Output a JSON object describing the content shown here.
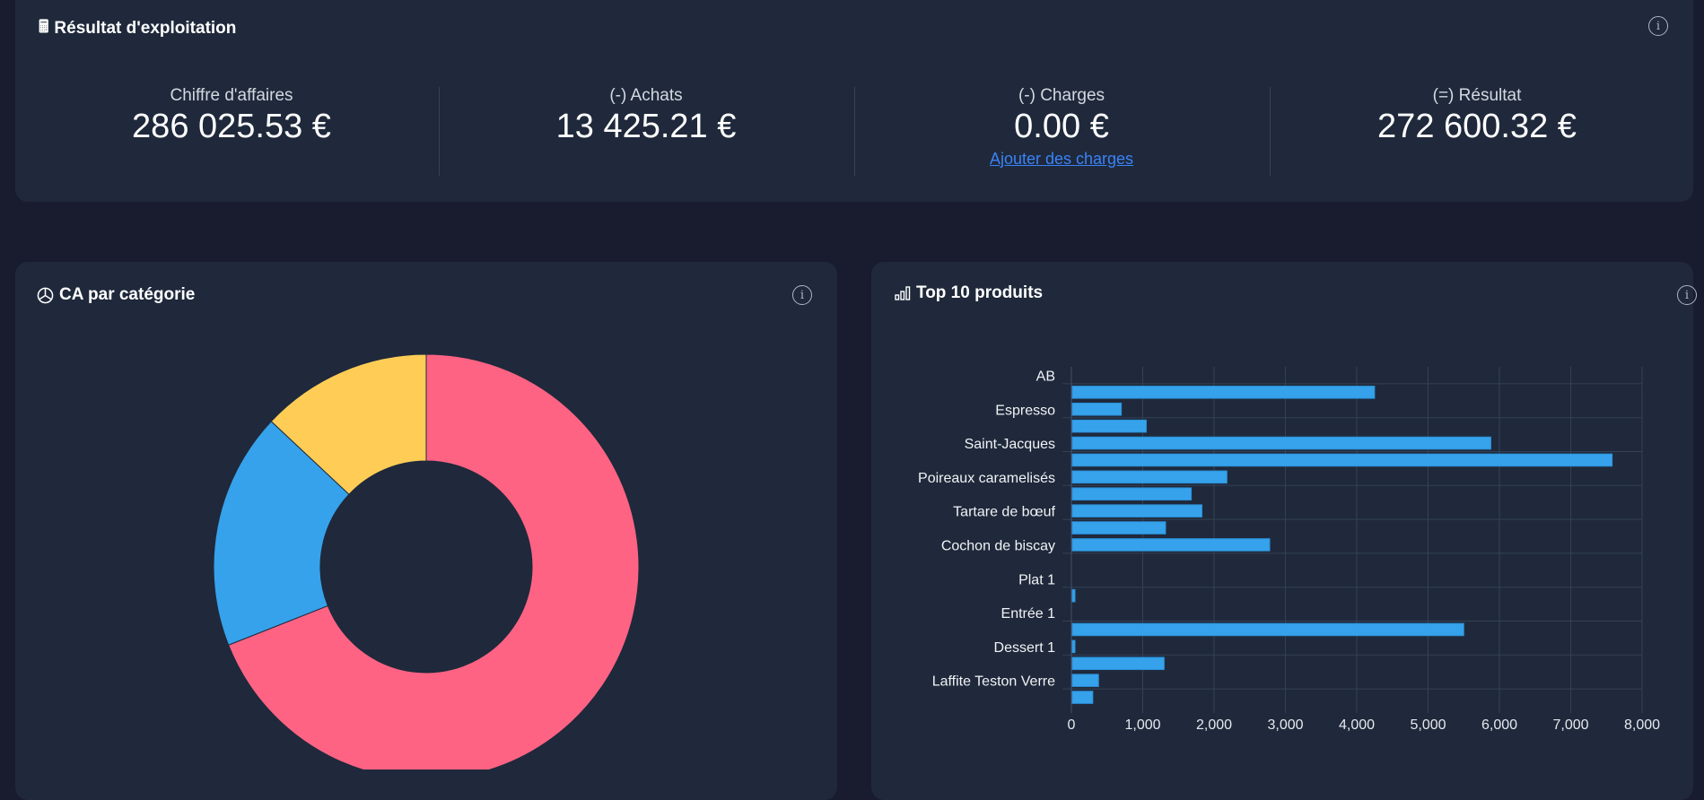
{
  "summary": {
    "title": "Résultat d'exploitation",
    "icon": "calculator-icon",
    "kpis": [
      {
        "label": "Chiffre d'affaires",
        "value": "286 025.53 €"
      },
      {
        "label": "(-) Achats",
        "value": "13 425.21 €"
      },
      {
        "label": "(-) Charges",
        "value": "0.00 €",
        "link": "Ajouter des charges"
      },
      {
        "label": "(=) Résultat",
        "value": "272 600.32 €"
      }
    ]
  },
  "category_card": {
    "title": "CA par catégorie",
    "icon": "pie-chart-icon"
  },
  "products_card": {
    "title": "Top 10 produits",
    "icon": "bar-chart-icon"
  },
  "colors": {
    "background": "#191b2e",
    "card": "#1f293b",
    "bar": "#36a2eb",
    "pie": [
      "#ff6384",
      "#36a2eb",
      "#ffcd56"
    ],
    "link": "#3b82f6"
  },
  "chart_data": [
    {
      "type": "pie",
      "variant": "doughnut",
      "values_percent": [
        69,
        18,
        13
      ],
      "colors": [
        "#ff6384",
        "#36a2eb",
        "#ffcd56"
      ]
    },
    {
      "type": "bar",
      "orientation": "horizontal",
      "categories": [
        "AB",
        "",
        "Espresso",
        "",
        "Saint-Jacques",
        "",
        "Poireaux caramelisés",
        "",
        "Tartare de bœuf",
        "",
        "Cochon de biscay",
        "",
        "Plat 1",
        "",
        "Entrée 1",
        "",
        "Dessert 1",
        "",
        "Laffite Teston Verre",
        ""
      ],
      "values": [
        0,
        4250,
        700,
        1050,
        5880,
        7580,
        2180,
        1680,
        1830,
        1320,
        2780,
        0,
        0,
        50,
        0,
        5500,
        50,
        1300,
        380,
        300
      ],
      "xlim": [
        0,
        8000
      ],
      "xticks": [
        "0",
        "1,000",
        "2,000",
        "3,000",
        "4,000",
        "5,000",
        "6,000",
        "7,000",
        "8,000"
      ],
      "grid": true
    }
  ]
}
